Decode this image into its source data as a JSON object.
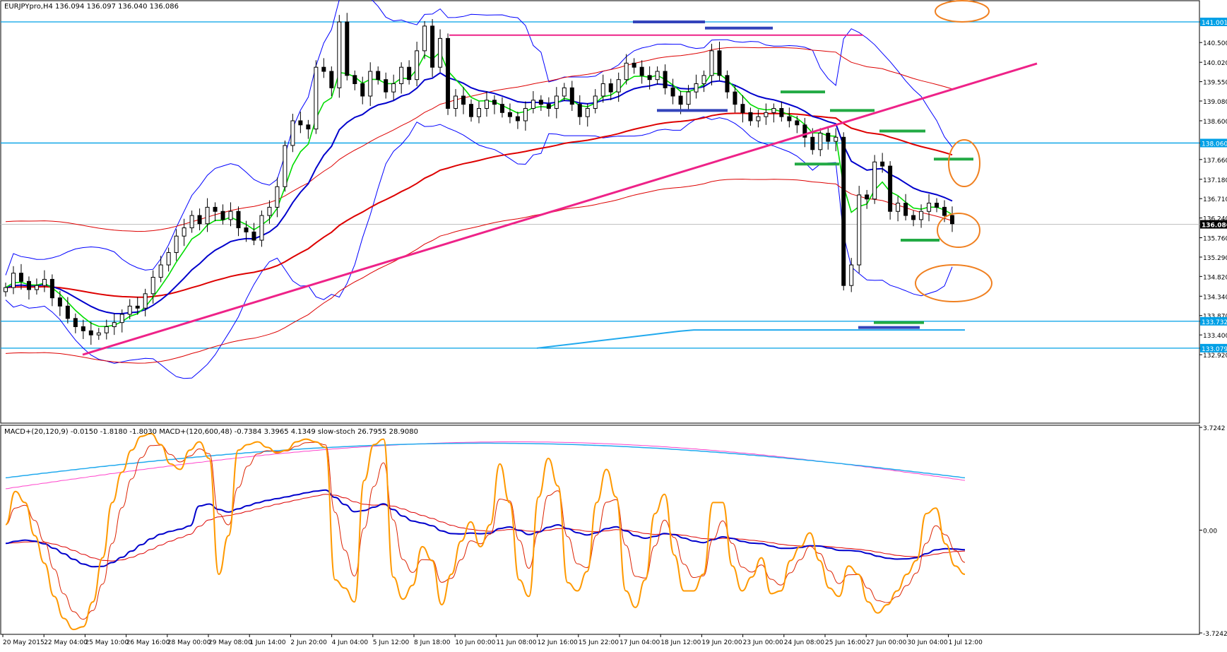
{
  "main_header": "EURJPYpro,H4  136.094 136.097 136.040 136.086",
  "sub_header": "MACD+(20,120,9) -0.0150 -1.8180 -1.8030  MACD+(120,600,48) -0.7384 3.3965 4.1349  slow-stoch 26.7955 28.9080",
  "price_ticks": [
    "141.001",
    "140.500",
    "140.020",
    "139.550",
    "139.080",
    "138.600",
    "138.060",
    "137.660",
    "137.180",
    "136.710",
    "136.240",
    "135.760",
    "135.290",
    "134.820",
    "134.340",
    "133.870",
    "133.732",
    "133.400",
    "133.079",
    "132.920"
  ],
  "current_price": "136.086",
  "highlight_levels": [
    "141.001",
    "138.060",
    "133.732",
    "133.079"
  ],
  "macd_ticks": [
    "3.7242",
    "0.00",
    "-3.7242"
  ],
  "time_labels": [
    "20 May 2015",
    "22 May 04:00",
    "25 May 10:00",
    "26 May 16:00",
    "28 May 00:00",
    "29 May 08:00",
    "1 Jun 14:00",
    "2 Jun 20:00",
    "4 Jun 04:00",
    "5 Jun 12:00",
    "8 Jun 18:00",
    "10 Jun 00:00",
    "11 Jun 08:00",
    "12 Jun 16:00",
    "15 Jun 22:00",
    "17 Jun 04:00",
    "18 Jun 12:00",
    "19 Jun 20:00",
    "23 Jun 00:00",
    "24 Jun 08:00",
    "25 Jun 16:00",
    "27 Jun 00:00",
    "30 Jun 04:00",
    "1 Jul 12:00"
  ],
  "colors": {
    "level": "#00a0e6",
    "bollinger": "#0000ff",
    "ma_fast": "#00dd00",
    "ma_mid": "#0000cc",
    "ma_slow": "#dd0000",
    "trend": "#ee2288",
    "annotation": "#f08020",
    "stoch": "#ff9900",
    "magenta": "#ff44cc",
    "cyan": "#22aaee",
    "bar_green": "#22aa44",
    "bar_blue": "#3344bb"
  },
  "chart_data": [
    {
      "type": "candlestick",
      "symbol": "EURJPYpro",
      "timeframe": "H4",
      "ylim": [
        132.92,
        141.5
      ],
      "close": [
        134.55,
        134.9,
        134.7,
        134.5,
        134.6,
        134.75,
        134.3,
        134.1,
        133.8,
        133.6,
        133.5,
        133.4,
        133.45,
        133.6,
        133.7,
        133.9,
        134.1,
        134.05,
        134.4,
        134.8,
        135.1,
        135.4,
        135.8,
        136.0,
        136.3,
        136.1,
        136.5,
        136.4,
        136.2,
        136.4,
        136.0,
        135.9,
        135.7,
        136.3,
        136.5,
        137.0,
        138.0,
        138.6,
        138.5,
        138.4,
        139.9,
        139.8,
        139.4,
        141.0,
        139.7,
        139.5,
        139.2,
        139.8,
        139.6,
        139.3,
        139.5,
        139.9,
        139.6,
        140.3,
        140.9,
        139.9,
        140.6,
        138.9,
        139.2,
        139.0,
        138.7,
        138.9,
        139.1,
        139.0,
        138.8,
        138.7,
        138.6,
        138.9,
        139.1,
        139.0,
        138.9,
        139.2,
        139.4,
        139.0,
        138.7,
        138.9,
        139.2,
        139.5,
        139.3,
        139.6,
        140.0,
        139.9,
        139.7,
        139.6,
        139.8,
        139.4,
        139.2,
        139.0,
        139.3,
        139.5,
        139.7,
        140.3,
        139.7,
        139.3,
        139.0,
        138.8,
        138.6,
        138.7,
        138.8,
        138.9,
        138.7,
        138.6,
        138.5,
        138.2,
        137.9,
        138.3,
        138.1,
        138.2,
        134.6,
        135.1,
        136.8,
        136.7,
        137.6,
        137.5,
        136.4,
        136.6,
        136.3,
        136.2,
        136.4,
        136.6,
        136.5,
        136.3,
        136.1
      ],
      "moving_averages": [
        "green fast",
        "blue mid",
        "red slow"
      ],
      "horizontal_levels": [
        141.001,
        138.06,
        133.732,
        133.079
      ]
    },
    {
      "type": "line",
      "indicators": [
        "MACD+(20,120,9)",
        "MACD+(120,600,48)",
        "slow-stoch"
      ],
      "ylim": [
        -3.7242,
        3.7242
      ],
      "stoch": [
        0.2,
        1.4,
        1.0,
        -0.2,
        -1.2,
        -2.4,
        -3.2,
        -3.6,
        -3.5,
        -2.6,
        -1.0,
        1.0,
        2.1,
        2.9,
        3.4,
        3.5,
        3.1,
        2.4,
        2.2,
        2.9,
        3.2,
        2.6,
        -1.6,
        -0.2,
        2.9,
        3.1,
        3.2,
        3.0,
        2.8,
        2.9,
        3.2,
        3.3,
        3.2,
        3.0,
        -1.8,
        -2.1,
        -2.6,
        1.8,
        3.1,
        3.3,
        -1.7,
        -2.5,
        -2.0,
        -0.6,
        -1.1,
        -2.7,
        -1.6,
        -0.4,
        0.3,
        -0.6,
        0.2,
        2.4,
        1.0,
        -1.8,
        -2.4,
        1.2,
        2.6,
        1.6,
        -1.9,
        -2.2,
        -1.5,
        1.0,
        2.2,
        1.2,
        -2.2,
        -2.8,
        -1.8,
        0.6,
        1.3,
        -0.9,
        -2.2,
        -2.2,
        -1.6,
        1.0,
        1.0,
        -1.3,
        -2.2,
        -1.7,
        -1.0,
        -2.3,
        -2.2,
        -1.1,
        -0.6,
        -0.1,
        -1.1,
        -2.1,
        -2.4,
        -1.3,
        -1.6,
        -2.6,
        -3.0,
        -2.7,
        -2.2,
        -1.6,
        -1.1,
        0.6,
        0.8,
        -0.5,
        -1.3,
        -1.6
      ]
    }
  ]
}
